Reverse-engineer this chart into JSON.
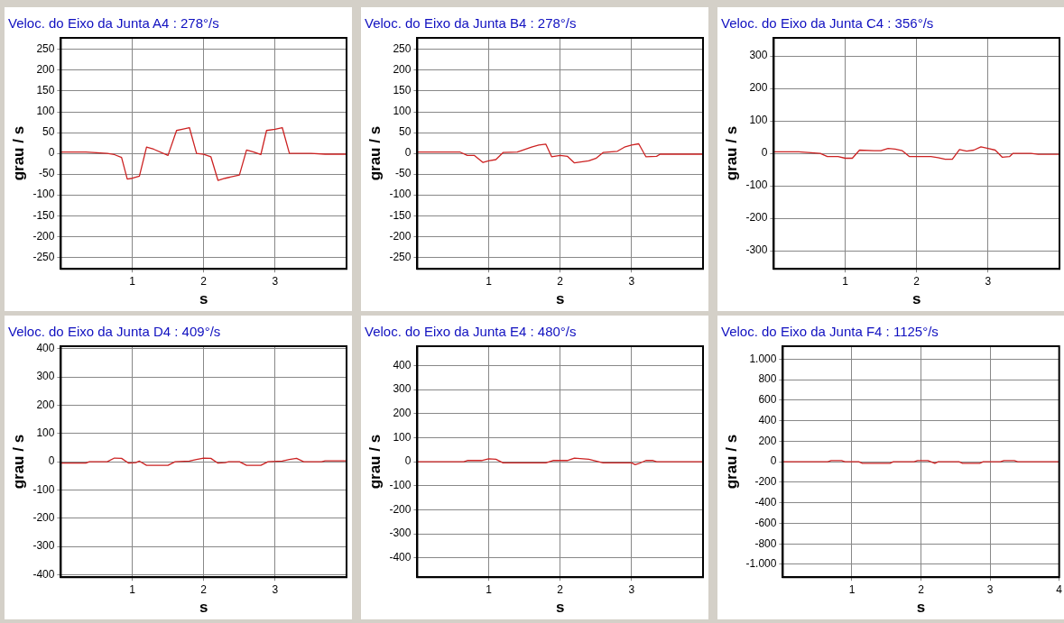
{
  "chart_data": [
    {
      "type": "line",
      "title": "Veloc. do Eixo da Junta A4 : 278°/s",
      "xlabel": "s",
      "ylabel": "grau / s",
      "xlim": [
        0,
        4
      ],
      "xticks": [
        1,
        2,
        3
      ],
      "ylim": [
        -278,
        278
      ],
      "yticks": [
        -250,
        -200,
        -150,
        -100,
        -50,
        0,
        50,
        100,
        150,
        200,
        250
      ],
      "grid": true,
      "line_style": "solid",
      "color": "#cc2222",
      "x": [
        0,
        0.35,
        0.65,
        0.75,
        0.85,
        0.93,
        1.0,
        1.1,
        1.2,
        1.3,
        1.5,
        1.62,
        1.7,
        1.8,
        1.9,
        2.0,
        2.1,
        2.2,
        2.3,
        2.5,
        2.6,
        2.7,
        2.8,
        2.88,
        3.0,
        3.1,
        3.2,
        3.5,
        3.7,
        4
      ],
      "values": [
        3,
        3,
        0,
        -3,
        -10,
        -62,
        -60,
        -55,
        15,
        10,
        -5,
        55,
        58,
        62,
        0,
        -2,
        -8,
        -65,
        -60,
        -52,
        8,
        3,
        -3,
        55,
        58,
        62,
        0,
        0,
        -2,
        -2
      ]
    },
    {
      "type": "line",
      "title": "Veloc. do Eixo da Junta B4 : 278°/s",
      "xlabel": "s",
      "ylabel": "grau / s",
      "xlim": [
        0,
        4
      ],
      "xticks": [
        1,
        2,
        3
      ],
      "ylim": [
        -278,
        278
      ],
      "yticks": [
        -250,
        -200,
        -150,
        -100,
        -50,
        0,
        50,
        100,
        150,
        200,
        250
      ],
      "grid": true,
      "line_style": "solid",
      "color": "#cc2222",
      "x": [
        0,
        0.6,
        0.7,
        0.8,
        0.92,
        1.0,
        1.1,
        1.2,
        1.4,
        1.6,
        1.7,
        1.8,
        1.88,
        2.0,
        2.1,
        2.2,
        2.4,
        2.5,
        2.6,
        2.8,
        2.9,
        3.0,
        3.1,
        3.2,
        3.35,
        3.4,
        4
      ],
      "values": [
        3,
        3,
        -5,
        -5,
        -22,
        -18,
        -15,
        2,
        3,
        15,
        20,
        22,
        -8,
        -5,
        -7,
        -23,
        -18,
        -12,
        2,
        5,
        15,
        20,
        23,
        -8,
        -7,
        -2,
        -2
      ]
    },
    {
      "type": "line",
      "title": "Veloc. do Eixo da Junta C4 : 356°/s",
      "xlabel": "s",
      "ylabel": "grau / s",
      "xlim": [
        0,
        4
      ],
      "xticks": [
        1,
        2,
        3
      ],
      "ylim": [
        -356,
        356
      ],
      "yticks": [
        -300,
        -200,
        -100,
        0,
        100,
        200,
        300
      ],
      "grid": true,
      "line_style": "solid",
      "color": "#cc2222",
      "x": [
        0,
        0.35,
        0.65,
        0.75,
        0.9,
        1.0,
        1.1,
        1.2,
        1.4,
        1.5,
        1.6,
        1.7,
        1.8,
        1.9,
        2.2,
        2.3,
        2.4,
        2.5,
        2.6,
        2.7,
        2.8,
        2.9,
        3.0,
        3.1,
        3.2,
        3.3,
        3.35,
        3.6,
        3.7,
        4
      ],
      "values": [
        5,
        5,
        0,
        -10,
        -10,
        -15,
        -15,
        10,
        8,
        8,
        15,
        13,
        8,
        -10,
        -10,
        -13,
        -18,
        -18,
        12,
        7,
        10,
        20,
        15,
        10,
        -12,
        -10,
        0,
        0,
        -3,
        -3
      ]
    },
    {
      "type": "line",
      "title": "Veloc. do Eixo da Junta D4 : 409°/s",
      "xlabel": "s",
      "ylabel": "grau / s",
      "xlim": [
        0,
        4
      ],
      "xticks": [
        1,
        2,
        3
      ],
      "ylim": [
        -409,
        409
      ],
      "yticks": [
        -400,
        -300,
        -200,
        -100,
        0,
        100,
        200,
        300,
        400
      ],
      "grid": true,
      "line_style": "solid",
      "color": "#cc2222",
      "x": [
        0,
        0.35,
        0.4,
        0.65,
        0.75,
        0.85,
        0.95,
        1.05,
        1.1,
        1.2,
        1.5,
        1.6,
        1.8,
        1.9,
        2.0,
        2.1,
        2.2,
        2.3,
        2.35,
        2.5,
        2.6,
        2.8,
        2.9,
        3.1,
        3.2,
        3.3,
        3.4,
        3.65,
        3.7,
        4
      ],
      "values": [
        -5,
        -5,
        0,
        0,
        13,
        12,
        -5,
        -3,
        2,
        -13,
        -13,
        0,
        2,
        8,
        13,
        12,
        -5,
        -3,
        0,
        0,
        -13,
        -13,
        0,
        2,
        8,
        12,
        0,
        0,
        3,
        3
      ]
    },
    {
      "type": "line",
      "title": "Veloc. do Eixo da Junta E4 : 480°/s",
      "xlabel": "s",
      "ylabel": "grau / s",
      "xlim": [
        0,
        4
      ],
      "xticks": [
        1,
        2,
        3
      ],
      "ylim": [
        -480,
        480
      ],
      "yticks": [
        -400,
        -300,
        -200,
        -100,
        0,
        100,
        200,
        300,
        400
      ],
      "grid": true,
      "line_style": "solid",
      "color": "#cc2222",
      "x": [
        0,
        0.65,
        0.7,
        0.9,
        1.0,
        1.1,
        1.2,
        1.8,
        1.9,
        2.1,
        2.2,
        2.4,
        2.6,
        3.0,
        3.05,
        3.1,
        3.2,
        3.3,
        3.35,
        4
      ],
      "values": [
        0,
        0,
        5,
        5,
        12,
        10,
        -5,
        -5,
        5,
        5,
        15,
        10,
        -5,
        -5,
        -12,
        -8,
        5,
        5,
        0,
        0
      ]
    },
    {
      "type": "line",
      "title": "Veloc. do Eixo da Junta F4 : 1125°/s",
      "xlabel": "s",
      "ylabel": "grau / s",
      "xlim": [
        0,
        4
      ],
      "xticks": [
        1,
        2,
        3,
        4
      ],
      "ylim": [
        -1125,
        1125
      ],
      "yticks": [
        {
          "value": -1000,
          "label": "-1.000"
        },
        -800,
        -600,
        -400,
        -200,
        0,
        200,
        400,
        600,
        800,
        {
          "value": 1000,
          "label": "1.000"
        }
      ],
      "grid": true,
      "line_style": "solid",
      "color": "#cc2222",
      "x": [
        0,
        0.65,
        0.7,
        0.85,
        0.9,
        1.1,
        1.15,
        1.55,
        1.6,
        1.9,
        1.95,
        2.1,
        2.2,
        2.25,
        2.55,
        2.6,
        2.85,
        2.9,
        3.15,
        3.2,
        3.35,
        3.4,
        4
      ],
      "values": [
        0,
        0,
        10,
        10,
        0,
        0,
        -15,
        -15,
        0,
        0,
        10,
        10,
        -15,
        0,
        0,
        -15,
        -15,
        0,
        0,
        10,
        10,
        0,
        0
      ]
    }
  ]
}
